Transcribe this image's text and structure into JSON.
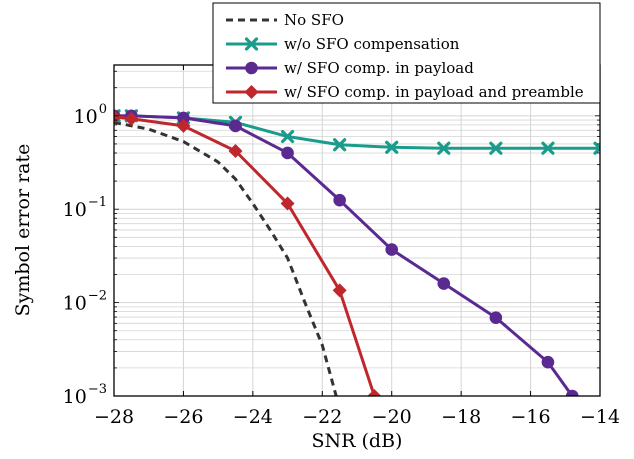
{
  "chart_data": {
    "type": "line",
    "xlabel": "SNR (dB)",
    "ylabel": "Symbol error rate",
    "xlim": [
      -28,
      -14
    ],
    "ylim": [
      0.001,
      3.5
    ],
    "yscale": "log",
    "grid": true,
    "legend_position": "top-right",
    "x_ticks": [
      -28,
      -26,
      -24,
      -22,
      -20,
      -18,
      -16,
      -14
    ],
    "x_tick_labels": [
      "−28",
      "−26",
      "−24",
      "−22",
      "−20",
      "−18",
      "−16",
      "−14"
    ],
    "y_ticks": [
      1,
      0.1,
      0.01,
      0.001
    ],
    "y_tick_labels": [
      {
        "base": "10",
        "exp": "0"
      },
      {
        "base": "10",
        "exp": "−1"
      },
      {
        "base": "10",
        "exp": "−2"
      },
      {
        "base": "10",
        "exp": "−3"
      }
    ],
    "series": [
      {
        "name": "No SFO",
        "color": "#333333",
        "dash": true,
        "marker": "none",
        "x": [
          -28,
          -27,
          -26,
          -25,
          -24.5,
          -24,
          -23.5,
          -23,
          -22.5,
          -22,
          -21.6
        ],
        "y": [
          0.85,
          0.72,
          0.53,
          0.32,
          0.21,
          0.115,
          0.06,
          0.03,
          0.01,
          0.0035,
          0.001
        ]
      },
      {
        "name": "w/o SFO compensation",
        "color": "#1a9c8c",
        "marker": "x",
        "x": [
          -28,
          -27.5,
          -26,
          -24.5,
          -23,
          -21.5,
          -20,
          -18.5,
          -17,
          -15.5,
          -14
        ],
        "y": [
          1.0,
          1.0,
          0.95,
          0.85,
          0.6,
          0.49,
          0.46,
          0.45,
          0.45,
          0.45,
          0.45
        ]
      },
      {
        "name": "w/ SFO comp. in payload",
        "color": "#5a2a91",
        "marker": "circle",
        "x": [
          -28,
          -27.5,
          -26,
          -24.5,
          -23,
          -21.5,
          -20,
          -18.5,
          -17,
          -15.5,
          -14.8
        ],
        "y": [
          1.0,
          1.0,
          0.95,
          0.78,
          0.4,
          0.125,
          0.037,
          0.016,
          0.0069,
          0.0023,
          0.001
        ]
      },
      {
        "name": "w/ SFO comp. in payload and preamble",
        "color": "#c0272d",
        "marker": "diamond",
        "x": [
          -28,
          -27.5,
          -26,
          -24.5,
          -23,
          -21.5,
          -20.5
        ],
        "y": [
          0.97,
          0.93,
          0.78,
          0.42,
          0.115,
          0.0135,
          0.001
        ]
      }
    ]
  }
}
